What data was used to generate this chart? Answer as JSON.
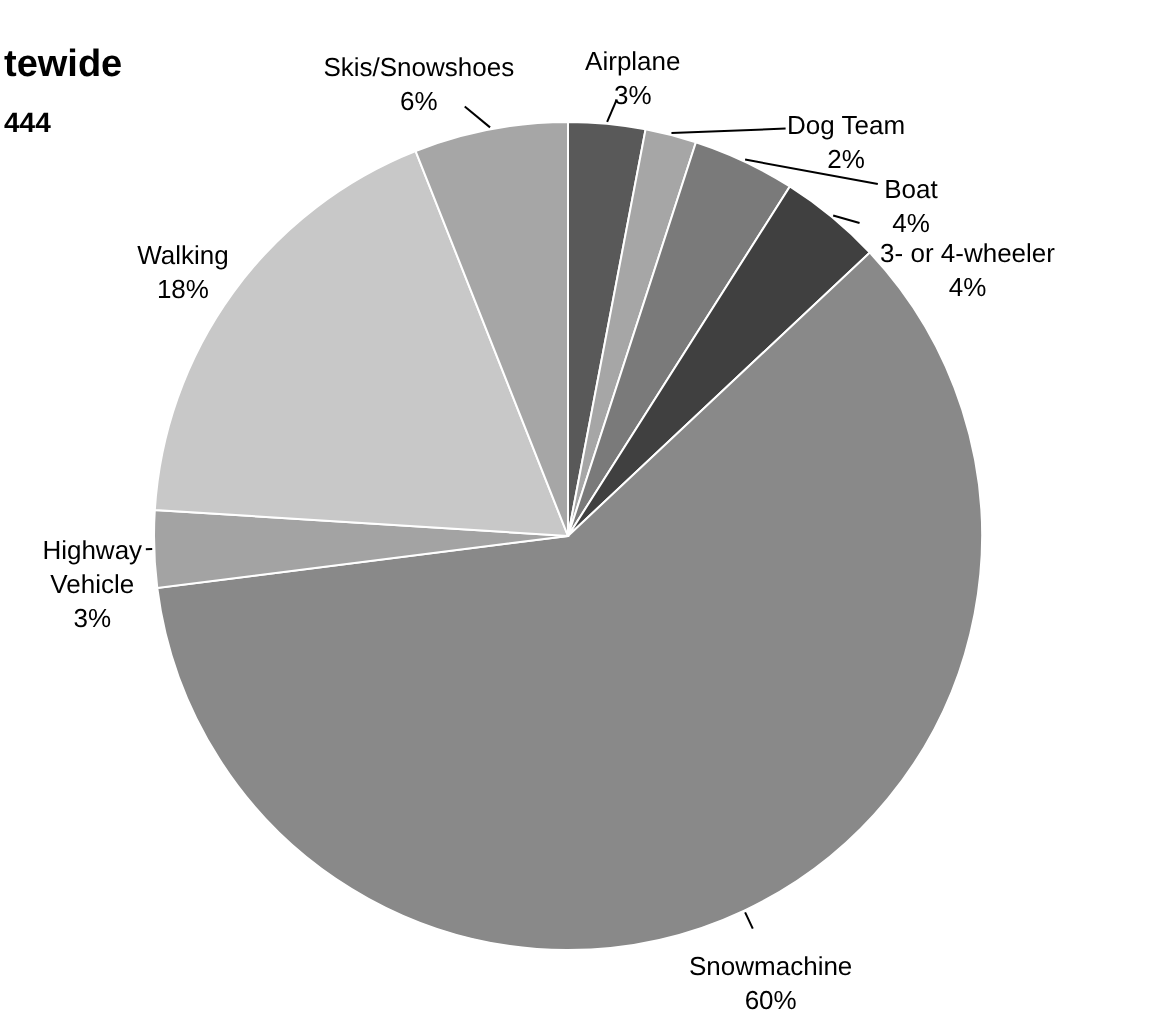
{
  "chart_data": {
    "type": "pie",
    "title": "tewide",
    "subtitle": "444",
    "categories": [
      "Airplane",
      "Dog Team",
      "Boat",
      "3- or 4-wheeler",
      "Snowmachine",
      "Highway Vehicle",
      "Walking",
      "Skis/Snowshoes"
    ],
    "values": [
      3,
      2,
      4,
      4,
      60,
      3,
      18,
      6
    ],
    "value_labels": [
      "3%",
      "2%",
      "4%",
      "4%",
      "60%",
      "3%",
      "18%",
      "6%"
    ],
    "colors": [
      "#595959",
      "#a6a6a6",
      "#7a7a7a",
      "#404040",
      "#898989",
      "#a3a3a3",
      "#c8c8c8",
      "#a6a6a6"
    ]
  }
}
